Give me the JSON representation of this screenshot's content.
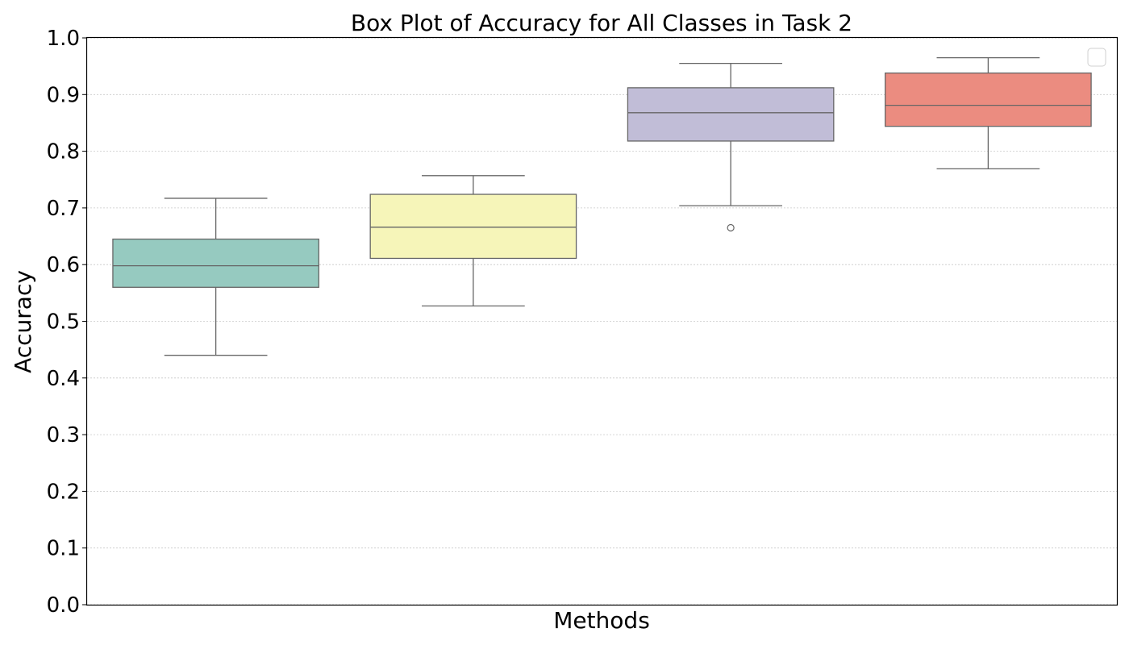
{
  "chart_data": {
    "type": "box",
    "title": "Box Plot of Accuracy for All Classes in Task 2",
    "xlabel": "Methods",
    "ylabel": "Accuracy",
    "ylim": [
      0,
      1
    ],
    "yticks": [
      "0.0",
      "0.1",
      "0.2",
      "0.3",
      "0.4",
      "0.5",
      "0.6",
      "0.7",
      "0.8",
      "0.9",
      "1.0"
    ],
    "grid": "horizontal dotted",
    "legend": "top-right, empty",
    "series": [
      {
        "whisker_low": 0.44,
        "q1": 0.56,
        "median": 0.598,
        "q3": 0.645,
        "whisker_high": 0.717,
        "outliers": [],
        "color": "#96cac0"
      },
      {
        "whisker_low": 0.527,
        "q1": 0.611,
        "median": 0.666,
        "q3": 0.724,
        "whisker_high": 0.757,
        "outliers": [],
        "color": "#f6f5b9"
      },
      {
        "whisker_low": 0.704,
        "q1": 0.818,
        "median": 0.868,
        "q3": 0.912,
        "whisker_high": 0.955,
        "outliers": [
          0.665
        ],
        "color": "#c1bdd7"
      },
      {
        "whisker_low": 0.769,
        "q1": 0.844,
        "median": 0.881,
        "q3": 0.938,
        "whisker_high": 0.965,
        "outliers": [],
        "color": "#eb8c80"
      }
    ]
  }
}
